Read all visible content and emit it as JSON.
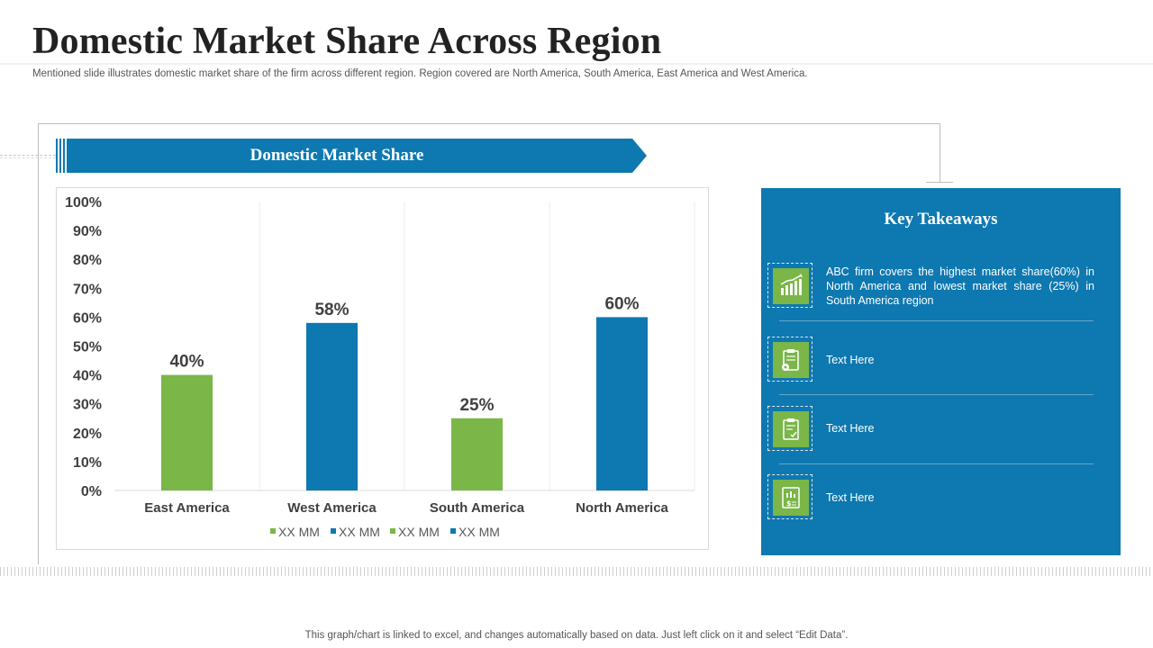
{
  "header": {
    "title": "Domestic Market Share Across Region",
    "subtitle": "Mentioned slide illustrates domestic market share of the firm across different region. Region covered are North America, South America, East America and West America."
  },
  "banner": {
    "label": "Domestic Market Share"
  },
  "colors": {
    "blue": "#0e78b0",
    "green": "#7ab648",
    "panel": "#0e78b0"
  },
  "chart_data": {
    "type": "bar",
    "categories": [
      "East America",
      "West America",
      "South America",
      "North America"
    ],
    "values": [
      40,
      58,
      25,
      60
    ],
    "data_labels": [
      "40%",
      "58%",
      "25%",
      "60%"
    ],
    "bar_colors": [
      "#7ab648",
      "#0e78b0",
      "#7ab648",
      "#0e78b0"
    ],
    "ylim": [
      0,
      100
    ],
    "y_ticks": [
      "0%",
      "10%",
      "20%",
      "30%",
      "40%",
      "50%",
      "60%",
      "70%",
      "80%",
      "90%",
      "100%"
    ],
    "legend": [
      {
        "name": "XX MM",
        "color": "#7ab648"
      },
      {
        "name": "XX MM",
        "color": "#0e78b0"
      },
      {
        "name": "XX MM",
        "color": "#7ab648"
      },
      {
        "name": "XX MM",
        "color": "#0e78b0"
      }
    ],
    "legend_position": "bottom",
    "grid": "vertical separators"
  },
  "takeaways": {
    "title": "Key Takeaways",
    "items": [
      {
        "icon": "bar-chart-icon",
        "text": "ABC firm covers the highest market share(60%) in North America and lowest market share (25%) in South America region"
      },
      {
        "icon": "clipboard-settings-icon",
        "text": "Text Here"
      },
      {
        "icon": "clipboard-check-icon",
        "text": "Text Here"
      },
      {
        "icon": "financial-report-icon",
        "text": "Text Here"
      }
    ]
  },
  "footer": {
    "note": "This graph/chart is linked to excel, and changes automatically based on data. Just left click on it and select “Edit Data”."
  }
}
